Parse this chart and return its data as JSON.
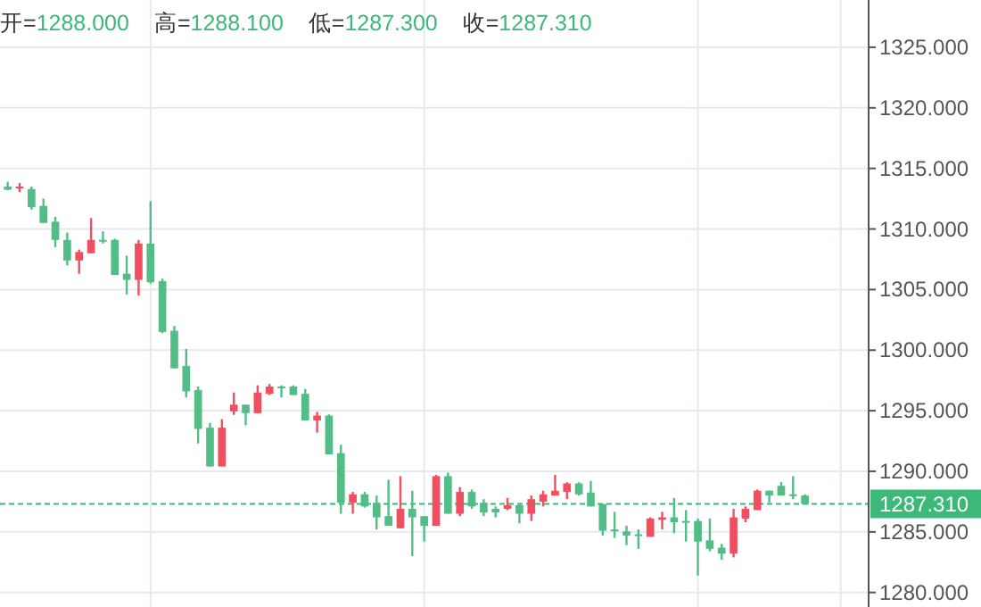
{
  "chart_data": {
    "type": "candlestick",
    "annotations": [
      "开=1288.000",
      "高=1288.100",
      "低=1287.300",
      "收=1287.310"
    ],
    "categories": [
      null,
      null,
      null,
      null,
      null,
      null,
      null,
      null,
      null,
      null,
      null,
      null,
      null,
      null,
      null,
      null,
      null,
      null,
      null,
      null,
      null,
      null,
      null,
      null,
      null,
      null,
      null,
      null,
      null,
      null,
      null,
      null,
      null,
      null,
      null,
      null,
      null,
      null,
      null,
      null,
      null,
      null,
      null,
      null,
      null,
      null,
      null,
      null,
      null,
      null,
      null,
      null,
      null,
      null,
      null,
      null,
      null,
      null,
      null,
      null,
      null,
      null,
      null,
      null,
      null,
      null,
      null,
      null
    ],
    "ohlc": [
      [
        1313.5,
        1313.9,
        1313.2,
        1313.24
      ],
      [
        1313.4,
        1313.8,
        1313.05,
        1313.5
      ],
      [
        1313.3,
        1313.5,
        1311.6,
        1311.8
      ],
      [
        1311.9,
        1312.5,
        1310.5,
        1310.5
      ],
      [
        1310.6,
        1311,
        1308.5,
        1309.1
      ],
      [
        1309.1,
        1309.7,
        1307,
        1307.4
      ],
      [
        1307.4,
        1308.3,
        1306.3,
        1308.1
      ],
      [
        1308,
        1310.9,
        1308,
        1309.1
      ],
      [
        1309.1,
        1309.8,
        1308.8,
        1309
      ],
      [
        1309.1,
        1309.2,
        1306.2,
        1306.2
      ],
      [
        1306.3,
        1307.8,
        1304.6,
        1305.8
      ],
      [
        1305.8,
        1309.1,
        1304.5,
        1308.8
      ],
      [
        1308.8,
        1312.3,
        1305.5,
        1305.6
      ],
      [
        1305.7,
        1305.9,
        1301.4,
        1301.5
      ],
      [
        1301.6,
        1302,
        1298.5,
        1298.5
      ],
      [
        1298.7,
        1300.1,
        1296.1,
        1296.6
      ],
      [
        1296.7,
        1297,
        1292.3,
        1293.5
      ],
      [
        1293.6,
        1294,
        1290.4,
        1290.4
      ],
      [
        1290.4,
        1294.3,
        1290.4,
        1293.6
      ],
      [
        1294.95,
        1296.5,
        1294.66,
        1295.5
      ],
      [
        1295.5,
        1295.5,
        1293.8,
        1294.8
      ],
      [
        1294.8,
        1297.1,
        1294.8,
        1296.5
      ],
      [
        1296.4,
        1297.2,
        1296.3,
        1297
      ],
      [
        1297,
        1297.1,
        1296.1,
        1296.9
      ],
      [
        1297,
        1297.1,
        1296.3,
        1296.3
      ],
      [
        1296.4,
        1296.8,
        1294.2,
        1294.2
      ],
      [
        1294.2,
        1294.9,
        1293.2,
        1294.6
      ],
      [
        1294.6,
        1294.7,
        1291.4,
        1291.4
      ],
      [
        1291.5,
        1292.2,
        1286.5,
        1287.4
      ],
      [
        1287.4,
        1288.3,
        1286.5,
        1288.1
      ],
      [
        1288.1,
        1288.3,
        1287,
        1287.1
      ],
      [
        1287.4,
        1288,
        1285.2,
        1286.2
      ],
      [
        1286.3,
        1289.3,
        1285.5,
        1285.5
      ],
      [
        1285.3,
        1289.6,
        1285.3,
        1286.9
      ],
      [
        1286.9,
        1288.4,
        1283,
        1286.2
      ],
      [
        1286.3,
        1286.3,
        1284.2,
        1285.5
      ],
      [
        1285.5,
        1289.7,
        1285.5,
        1289.6
      ],
      [
        1289.6,
        1289.9,
        1286.5,
        1286.5
      ],
      [
        1286.5,
        1288.7,
        1286.3,
        1288.3
      ],
      [
        1288.3,
        1288.5,
        1286.9,
        1287.1
      ],
      [
        1287.4,
        1287.7,
        1286.3,
        1286.6
      ],
      [
        1286.9,
        1287.1,
        1286.2,
        1286.6
      ],
      [
        1286.9,
        1287.8,
        1286.8,
        1287.2
      ],
      [
        1287.2,
        1287.4,
        1285.7,
        1286.5
      ],
      [
        1286.5,
        1288,
        1285.9,
        1287.7
      ],
      [
        1287.5,
        1288.4,
        1287.1,
        1288.1
      ],
      [
        1288,
        1289.7,
        1288,
        1288.4
      ],
      [
        1288.3,
        1289.1,
        1287.7,
        1289
      ],
      [
        1289,
        1289.1,
        1288,
        1288.1
      ],
      [
        1288.25,
        1289.2,
        1287.1,
        1287.1
      ],
      [
        1287.3,
        1287.3,
        1284.7,
        1285.1
      ],
      [
        1285.2,
        1286.65,
        1284.5,
        1285.05
      ],
      [
        1285.05,
        1285.5,
        1283.9,
        1284.7
      ],
      [
        1284.8,
        1285.2,
        1283.6,
        1284.7
      ],
      [
        1284.6,
        1286.2,
        1284.6,
        1286.1
      ],
      [
        1286,
        1286.65,
        1285.2,
        1286.2
      ],
      [
        1286.2,
        1287.8,
        1284.9,
        1285.8
      ],
      [
        1285.9,
        1286.8,
        1284.2,
        1285.8
      ],
      [
        1285.9,
        1286.1,
        1281.4,
        1284.2
      ],
      [
        1284.3,
        1286.1,
        1283.4,
        1283.6
      ],
      [
        1283.7,
        1284,
        1282.7,
        1283.2
      ],
      [
        1283.2,
        1286.9,
        1282.9,
        1286.2
      ],
      [
        1286.1,
        1287.1,
        1285.8,
        1286.9
      ],
      [
        1286.8,
        1288.5,
        1286.8,
        1288.4
      ],
      [
        1288.4,
        1288.4,
        1287.4,
        1288
      ],
      [
        1288.8,
        1289.1,
        1288,
        1288
      ],
      [
        1288.1,
        1289.6,
        1287.7,
        1288
      ],
      [
        1288,
        1288.1,
        1287.3,
        1287.31
      ]
    ],
    "colors": [
      "#53bd88",
      "#ef4f5f",
      "#53bd88",
      "#53bd88",
      "#53bd88",
      "#53bd88",
      "#ef4f5f",
      "#ef4f5f",
      "#53bd88",
      "#53bd88",
      "#53bd88",
      "#ef4f5f",
      "#53bd88",
      "#53bd88",
      "#53bd88",
      "#53bd88",
      "#53bd88",
      "#53bd88",
      "#ef4f5f",
      "#ef4f5f",
      "#53bd88",
      "#ef4f5f",
      "#ef4f5f",
      "#53bd88",
      "#53bd88",
      "#53bd88",
      "#ef4f5f",
      "#53bd88",
      "#53bd88",
      "#ef4f5f",
      "#53bd88",
      "#53bd88",
      "#53bd88",
      "#ef4f5f",
      "#53bd88",
      "#53bd88",
      "#ef4f5f",
      "#53bd88",
      "#ef4f5f",
      "#53bd88",
      "#53bd88",
      "#53bd88",
      "#ef4f5f",
      "#53bd88",
      "#ef4f5f",
      "#ef4f5f",
      "#ef4f5f",
      "#ef4f5f",
      "#53bd88",
      "#53bd88",
      "#53bd88",
      "#53bd88",
      "#53bd88",
      "#53bd88",
      "#ef4f5f",
      "#ef4f5f",
      "#53bd88",
      "#53bd88",
      "#53bd88",
      "#53bd88",
      "#53bd88",
      "#ef4f5f",
      "#ef4f5f",
      "#ef4f5f",
      "#53bd88",
      "#53bd88",
      "#53bd88",
      "#53bd88"
    ],
    "ylim": [
      1278.8,
      1328.9
    ],
    "yticks": [
      {
        "value": 1280,
        "label": "1280.000"
      },
      {
        "value": 1285,
        "label": "1285.000"
      },
      {
        "value": 1290,
        "label": "1290.000"
      },
      {
        "value": 1295,
        "label": "1295.000"
      },
      {
        "value": 1300,
        "label": "1300.000"
      },
      {
        "value": 1305,
        "label": "1305.000"
      },
      {
        "value": 1310,
        "label": "1310.000"
      },
      {
        "value": 1315,
        "label": "1315.000"
      },
      {
        "value": 1320,
        "label": "1320.000"
      },
      {
        "value": 1325,
        "label": "1325.000"
      }
    ],
    "ref_lines": [
      {
        "axis": "y",
        "value": 1287.31,
        "label": "1287.310",
        "color": "#3cb878",
        "line_style": "dashed"
      }
    ],
    "grid": true,
    "tick_labels": "y"
  }
}
